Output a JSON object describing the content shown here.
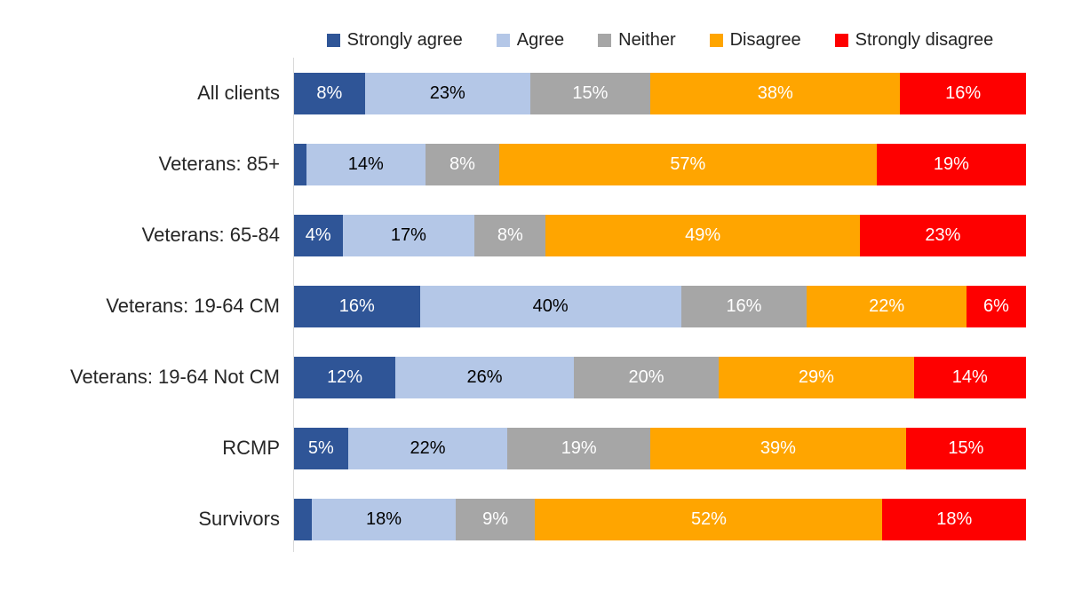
{
  "chart_data": {
    "type": "bar",
    "variant": "horizontal-100pct-stacked",
    "title": "",
    "xlabel": "",
    "ylabel": "",
    "xlim": [
      0,
      100
    ],
    "grid": false,
    "legend_position": "top",
    "axis_line_color": "#d9d9d9",
    "categories": [
      "All clients",
      "Veterans: 85+",
      "Veterans: 65-84",
      "Veterans: 19-64 CM",
      "Veterans: 19-64 Not CM",
      "RCMP",
      "Survivors"
    ],
    "series": [
      {
        "name": "Strongly agree",
        "color": "#2F5597",
        "label_color": "#FFFFFF",
        "values": [
          8,
          2,
          4,
          16,
          12,
          5,
          3
        ],
        "labels": [
          "8%",
          "",
          "4%",
          "16%",
          "12%",
          "5%",
          ""
        ]
      },
      {
        "name": "Agree",
        "color": "#B4C7E7",
        "label_color": "#000000",
        "values": [
          23,
          14,
          17,
          40,
          26,
          22,
          18
        ],
        "labels": [
          "23%",
          "14%",
          "17%",
          "40%",
          "26%",
          "22%",
          "18%"
        ]
      },
      {
        "name": "Neither",
        "color": "#A6A6A6",
        "label_color": "#FFFFFF",
        "values": [
          15,
          8,
          8,
          16,
          20,
          19,
          9
        ],
        "labels": [
          "15%",
          "8%",
          "8%",
          "16%",
          "20%",
          "19%",
          "9%"
        ]
      },
      {
        "name": "Disagree",
        "color": "#FFA500",
        "label_color": "#FFFFFF",
        "values": [
          38,
          57,
          49,
          22,
          29,
          39,
          52
        ],
        "labels": [
          "38%",
          "57%",
          "49%",
          "22%",
          "29%",
          "39%",
          "52%"
        ]
      },
      {
        "name": "Strongly disagree",
        "color": "#FE0000",
        "label_color": "#FFFFFF",
        "values": [
          16,
          19,
          23,
          6,
          14,
          15,
          18
        ],
        "labels": [
          "16%",
          "19%",
          "23%",
          "6%",
          "14%",
          "15%",
          "18%"
        ]
      }
    ]
  }
}
